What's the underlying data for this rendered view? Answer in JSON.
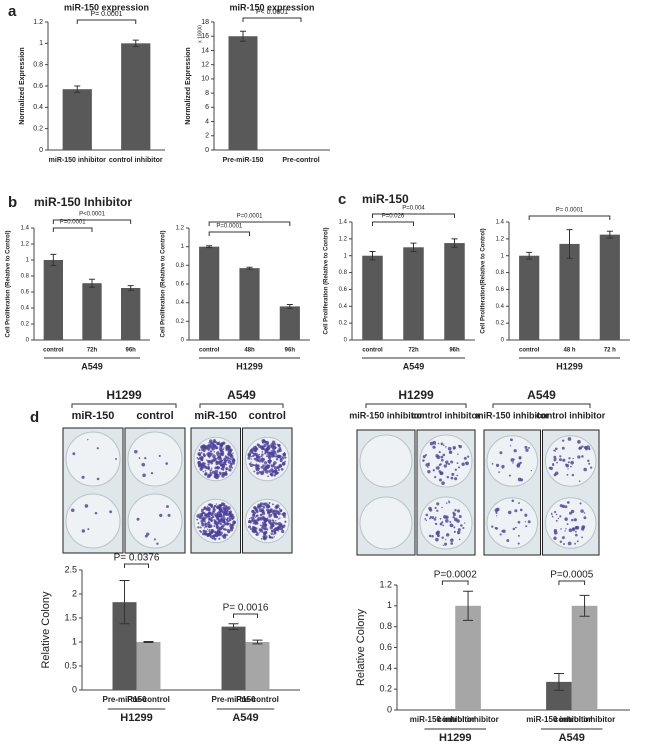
{
  "figure": {
    "panel_labels": [
      "a",
      "b",
      "c",
      "d"
    ],
    "headers": [
      "miR-150  Inhibitor",
      "miR-150"
    ],
    "plates": [
      {
        "groups": [
          "H1299",
          "A549"
        ],
        "columns": [
          "miR-150",
          "control"
        ]
      },
      {
        "groups": [
          "H1299",
          "A549"
        ],
        "columns": [
          "miR-150 inhibitor",
          "control inhibitor"
        ]
      }
    ]
  },
  "chart_data": [
    {
      "type": "bar",
      "title": "miR-150 expression",
      "ylabel": "Normalized Expression",
      "categories": [
        "miR-150 inhibitor",
        "control inhibitor"
      ],
      "values": [
        0.57,
        1.0
      ],
      "errors": [
        0.03,
        0.03
      ],
      "color": "#595959",
      "ylim": [
        0,
        1.2
      ],
      "yticks": [
        0,
        0.2,
        0.4,
        0.6,
        0.8,
        1,
        1.2
      ],
      "annotations": [
        "P= 0.0001"
      ]
    },
    {
      "type": "bar",
      "title": "miR-150 expression",
      "ylabel": "Normalized Expression",
      "y_multiplier": "x 10000",
      "categories": [
        "Pre-miR-150",
        "Pre-control"
      ],
      "values": [
        16,
        0
      ],
      "errors": [
        0.7,
        0
      ],
      "color": "#595959",
      "ylim": [
        0,
        18
      ],
      "yticks": [
        0,
        2,
        4,
        6,
        8,
        10,
        12,
        14,
        16,
        18
      ],
      "annotations": [
        "P< 0.0001"
      ]
    },
    {
      "type": "bar",
      "ylabel": "Cell Proliferation (Relative to Control)",
      "xlabel": "A549",
      "categories": [
        "control",
        "72h",
        "96h"
      ],
      "values": [
        1.0,
        0.71,
        0.65
      ],
      "errors": [
        0.07,
        0.05,
        0.03
      ],
      "color": "#595959",
      "ylim": [
        0,
        1.4
      ],
      "yticks": [
        0,
        0.2,
        0.4,
        0.6,
        0.8,
        1,
        1.2,
        1.4
      ],
      "annotations": [
        "P=0.0001",
        "P<0.0001"
      ]
    },
    {
      "type": "bar",
      "ylabel": "Cell Proliferation (Relative to Control)",
      "xlabel": "H1299",
      "categories": [
        "control",
        "48h",
        "96h"
      ],
      "values": [
        1.0,
        0.77,
        0.36
      ],
      "errors": [
        0.01,
        0.01,
        0.02
      ],
      "color": "#595959",
      "ylim": [
        0,
        1.2
      ],
      "yticks": [
        0,
        0.2,
        0.4,
        0.6,
        0.8,
        1,
        1.2
      ],
      "annotations": [
        "P=0.0001",
        "P=0.0001"
      ]
    },
    {
      "type": "bar",
      "ylabel": "Cell Proliferation (Relative to Control)",
      "xlabel": "A549",
      "categories": [
        "control",
        "72h",
        "96h"
      ],
      "values": [
        1.0,
        1.1,
        1.15
      ],
      "errors": [
        0.05,
        0.05,
        0.05
      ],
      "color": "#595959",
      "ylim": [
        0,
        1.4
      ],
      "yticks": [
        0,
        0.2,
        0.4,
        0.6,
        0.8,
        1,
        1.2,
        1.4
      ],
      "annotations": [
        "P=0.026",
        "P=0.004"
      ]
    },
    {
      "type": "bar",
      "ylabel": "Cell Proliferation(Relative to Control)",
      "xlabel": "H1299",
      "categories": [
        "control",
        "48 h",
        "72 h"
      ],
      "values": [
        1.0,
        1.14,
        1.25
      ],
      "errors": [
        0.04,
        0.17,
        0.04
      ],
      "color": "#595959",
      "ylim": [
        0,
        1.4
      ],
      "yticks": [
        0,
        0.2,
        0.4,
        0.6,
        0.8,
        1,
        1.2,
        1.4
      ],
      "annotations": [
        "P= 0.0001"
      ]
    },
    {
      "type": "grouped_bar",
      "ylabel": "Relative Colony",
      "categories": [
        "H1299",
        "A549"
      ],
      "series": [
        {
          "name": "Pre-miR150",
          "color": "#595959",
          "values": [
            1.83,
            1.32
          ],
          "errors": [
            0.45,
            0.06
          ]
        },
        {
          "name": "Pre-control",
          "color": "#a6a6a6",
          "values": [
            1.0,
            1.0
          ],
          "errors": [
            0.01,
            0.04
          ]
        }
      ],
      "ylim": [
        0,
        2.5
      ],
      "yticks": [
        0,
        0.5,
        1,
        1.5,
        2,
        2.5
      ],
      "annotations": [
        "P= 0.0376",
        "P= 0.0016"
      ]
    },
    {
      "type": "grouped_bar",
      "ylabel": "Relative Colony",
      "categories": [
        "H1299",
        "A549"
      ],
      "series": [
        {
          "name": "miR-150 inhibitor",
          "color": "#595959",
          "values": [
            0,
            0.27
          ],
          "errors": [
            0,
            0.08
          ]
        },
        {
          "name": "control inhibitor",
          "color": "#a6a6a6",
          "values": [
            1.0,
            1.0
          ],
          "errors": [
            0.14,
            0.1
          ]
        }
      ],
      "ylim": [
        0,
        1.2
      ],
      "yticks": [
        0,
        0.2,
        0.4,
        0.6,
        0.8,
        1,
        1.2
      ],
      "annotations": [
        "P=0.0002",
        "P=0.0005"
      ]
    }
  ]
}
